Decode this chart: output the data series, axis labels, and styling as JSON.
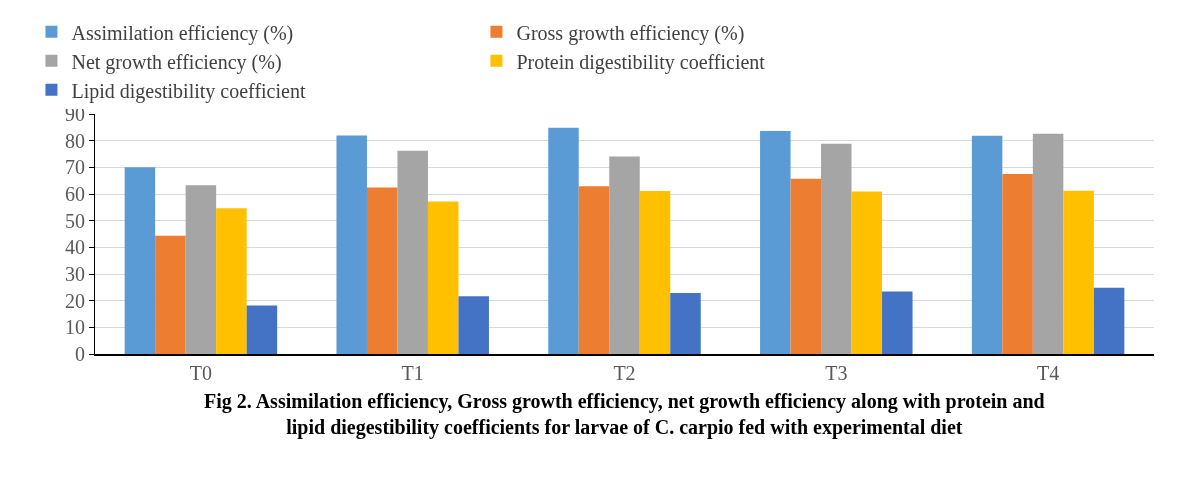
{
  "chart_data": {
    "type": "bar",
    "categories": [
      "T0",
      "T1",
      "T2",
      "T3",
      "T4"
    ],
    "series": [
      {
        "name": "Assimilation efficiency (%)",
        "color": "#5b9bd5",
        "values": [
          70.0,
          81.9,
          84.8,
          83.6,
          81.8
        ]
      },
      {
        "name": "Gross growth efficiency (%)",
        "color": "#ed7d31",
        "values": [
          44.3,
          62.4,
          62.9,
          65.7,
          67.5
        ]
      },
      {
        "name": "Net growth efficiency (%)",
        "color": "#a5a5a5",
        "values": [
          63.3,
          76.2,
          74.1,
          78.8,
          82.6
        ]
      },
      {
        "name": "Protein digestibility coefficient",
        "color": "#ffc000",
        "values": [
          54.7,
          57.2,
          61.1,
          60.9,
          61.2
        ]
      },
      {
        "name": "Lipid digestibility coefficient",
        "color": "#4472c4",
        "values": [
          18.2,
          21.7,
          22.9,
          23.4,
          24.8
        ]
      }
    ],
    "ylim": [
      0,
      90
    ],
    "yticks": [
      0,
      10,
      20,
      30,
      40,
      50,
      60,
      70,
      80,
      90
    ],
    "grid": "y",
    "legend": "top left",
    "annotations": [
      "Fig 2. Assimilation efficiency, Gross growth efficiency, net growth efficiency along with protein and lipid diegestibility coefficients for larvae of C. carpio fed with experimental diet"
    ]
  }
}
